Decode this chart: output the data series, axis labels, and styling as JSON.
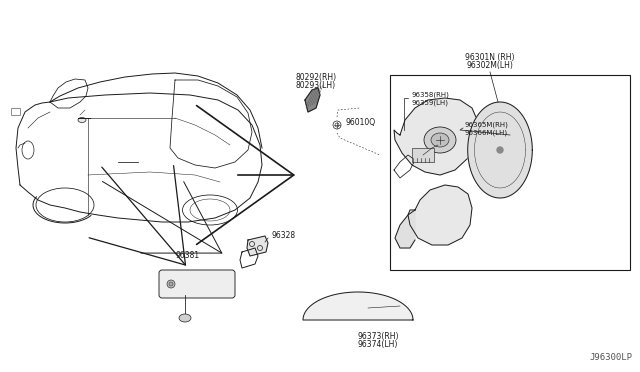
{
  "bg_color": "#ffffff",
  "line_color": "#1a1a1a",
  "text_color": "#1a1a1a",
  "watermark": "J96300LP",
  "labels": {
    "80292_rh": "80292(RH)",
    "80293_lh": "80293(LH)",
    "96010q": "96010Q",
    "96301n_rh": "96301N (RH)",
    "96302m_lh": "96302M(LH)",
    "96358_rh": "96358(RH)",
    "96359_lh": "96359(LH)",
    "96365m_rh": "96365M(RH)",
    "96366m_lh": "96366M(LH)",
    "96328": "96328",
    "96381": "96381",
    "96373_rh": "96373(RH)",
    "96374_lh": "96374(LH)"
  },
  "figsize": [
    6.4,
    3.72
  ],
  "dpi": 100
}
